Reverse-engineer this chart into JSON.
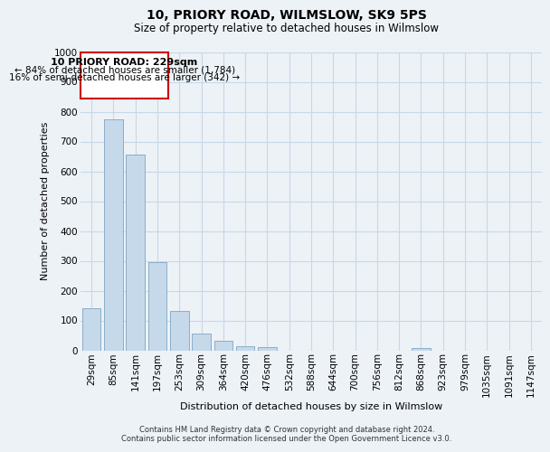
{
  "title": "10, PRIORY ROAD, WILMSLOW, SK9 5PS",
  "subtitle": "Size of property relative to detached houses in Wilmslow",
  "xlabel": "Distribution of detached houses by size in Wilmslow",
  "ylabel": "Number of detached properties",
  "bar_labels": [
    "29sqm",
    "85sqm",
    "141sqm",
    "197sqm",
    "253sqm",
    "309sqm",
    "364sqm",
    "420sqm",
    "476sqm",
    "532sqm",
    "588sqm",
    "644sqm",
    "700sqm",
    "756sqm",
    "812sqm",
    "868sqm",
    "923sqm",
    "979sqm",
    "1035sqm",
    "1091sqm",
    "1147sqm"
  ],
  "bar_values": [
    140,
    775,
    655,
    295,
    133,
    57,
    32,
    14,
    10,
    0,
    0,
    0,
    0,
    0,
    0,
    9,
    0,
    0,
    0,
    0,
    0
  ],
  "bar_color": "#c6d9ea",
  "bar_edge_color": "#8aaec8",
  "ylim": [
    0,
    1000
  ],
  "yticks": [
    0,
    100,
    200,
    300,
    400,
    500,
    600,
    700,
    800,
    900,
    1000
  ],
  "annotation_box_title": "10 PRIORY ROAD: 229sqm",
  "annotation_line1": "← 84% of detached houses are smaller (1,784)",
  "annotation_line2": "16% of semi-detached houses are larger (342) →",
  "annotation_box_color": "#ffffff",
  "annotation_box_edge": "#cc0000",
  "footer_line1": "Contains HM Land Registry data © Crown copyright and database right 2024.",
  "footer_line2": "Contains public sector information licensed under the Open Government Licence v3.0.",
  "grid_color": "#c8d8e8",
  "background_color": "#edf2f7",
  "title_fontsize": 10,
  "subtitle_fontsize": 8.5,
  "xlabel_fontsize": 8,
  "ylabel_fontsize": 8,
  "tick_fontsize": 7.5,
  "footer_fontsize": 6
}
